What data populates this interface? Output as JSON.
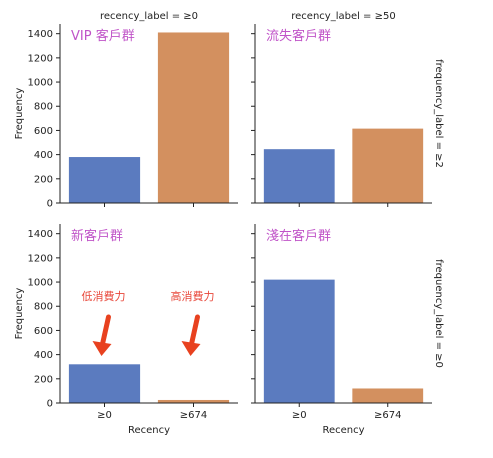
{
  "chart_data": {
    "type": "bar",
    "layout": "2x2 facet grid",
    "grid": false,
    "xlabel": "Recency",
    "ylabel": "Frequency",
    "ylim": [
      0,
      1480
    ],
    "yticks": [
      "0",
      "200",
      "400",
      "600",
      "800",
      "1000",
      "1200",
      "1400"
    ],
    "colors": {
      "low": "#5b7bbf",
      "high": "#d3905f",
      "annotation": "#c054c8",
      "arrow_note": "#e8473a",
      "arrow": "#e8411f"
    },
    "panels": [
      {
        "col_title": "recency_label = ≥0",
        "row_title": "",
        "note": "VIP 客戶群",
        "categories": [
          "≥0",
          "≥674"
        ],
        "values": [
          380,
          1410
        ],
        "show_xticklabels": false
      },
      {
        "col_title": "recency_label = ≥50",
        "row_title": "frequency_label = ≥2",
        "note": "流失客戶群",
        "categories": [
          "≥0",
          "≥674"
        ],
        "values": [
          445,
          615
        ],
        "show_xticklabels": false
      },
      {
        "col_title": "",
        "row_title": "",
        "note": "新客戶群",
        "categories": [
          "≥0",
          "≥674"
        ],
        "values": [
          320,
          25
        ],
        "show_xticklabels": true,
        "arrow_labels": [
          "低消費力",
          "高消費力"
        ]
      },
      {
        "col_title": "",
        "row_title": "frequency_label = ≥0",
        "note": "淺在客戶群",
        "categories": [
          "≥0",
          "≥674"
        ],
        "values": [
          1020,
          120
        ],
        "show_xticklabels": true
      }
    ]
  }
}
